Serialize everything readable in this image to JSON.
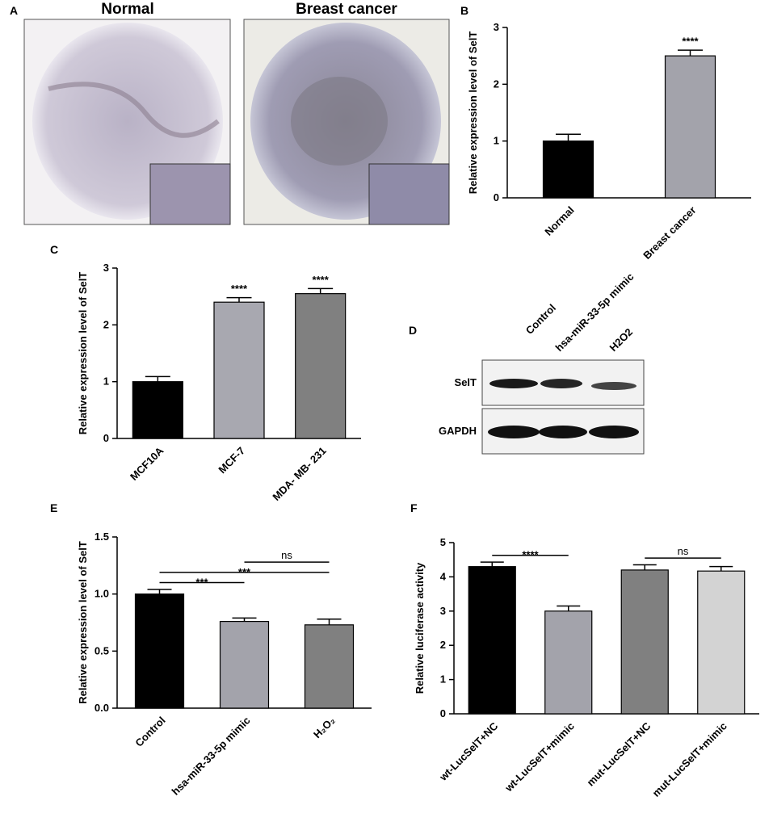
{
  "panel_a": {
    "letter": "A",
    "images": [
      "Normal",
      "Breast cancer"
    ]
  },
  "panel_d": {
    "letter": "D",
    "columns": [
      "Control",
      "hsa-miR-33-5p mimic",
      "H2O2"
    ],
    "rows": [
      "SelT",
      "GAPDH"
    ]
  },
  "chart_data": [
    {
      "type": "bar",
      "label": "B",
      "ylabel": "Relative expression level of SelT",
      "categories": [
        "Normal",
        "Breast cancer"
      ],
      "values": [
        1.0,
        2.5
      ],
      "errors": [
        0.12,
        0.1
      ],
      "colors": [
        "#000000",
        "#a3a3ab"
      ],
      "ylim": [
        0,
        3
      ],
      "yticks": [
        0,
        1,
        2,
        3
      ],
      "annotations": [
        {
          "text": "****",
          "from": 1,
          "to": 1
        }
      ]
    },
    {
      "type": "bar",
      "label": "C",
      "ylabel": "Relative expression level of SelT",
      "categories": [
        "MCF10A",
        "MCF-7",
        "MDA- MB- 231"
      ],
      "values": [
        1.0,
        2.4,
        2.55
      ],
      "errors": [
        0.09,
        0.08,
        0.09
      ],
      "colors": [
        "#000000",
        "#a8a8b0",
        "#808080"
      ],
      "ylim": [
        0,
        3
      ],
      "yticks": [
        0,
        1,
        2,
        3
      ],
      "annotations": [
        {
          "text": "****",
          "from": 1,
          "to": 1
        },
        {
          "text": "****",
          "from": 2,
          "to": 2
        }
      ]
    },
    {
      "type": "bar",
      "label": "E",
      "ylabel": "Relative expression level of SelT",
      "categories": [
        "Control",
        "hsa-miR-33-5p mimic",
        "H₂O₂"
      ],
      "values": [
        1.0,
        0.76,
        0.73
      ],
      "errors": [
        0.04,
        0.03,
        0.05
      ],
      "colors": [
        "#000000",
        "#a3a3ab",
        "#808080"
      ],
      "ylim": [
        0,
        1.5
      ],
      "yticks": [
        {
          "value": 0,
          "label": "0.0"
        },
        0.5,
        {
          "value": 1,
          "label": "1.0"
        },
        1.5
      ],
      "annotations": [
        {
          "text": "***",
          "from": 0,
          "to": 1
        },
        {
          "text": "***",
          "from": 0,
          "to": 2
        },
        {
          "text": "ns",
          "from": 1,
          "to": 2
        }
      ]
    },
    {
      "type": "bar",
      "label": "F",
      "ylabel": "Relative luciferase activity",
      "categories": [
        "wt-LucSelT+NC",
        "wt-LucSelT+mimic",
        "mut-LucSelT+NC",
        "mut-LucSelT+mimic"
      ],
      "values": [
        4.3,
        3.0,
        4.2,
        4.17
      ],
      "errors": [
        0.13,
        0.15,
        0.15,
        0.13
      ],
      "colors": [
        "#000000",
        "#a3a3ab",
        "#808080",
        "#d3d3d3"
      ],
      "ylim": [
        0,
        5
      ],
      "yticks": [
        0,
        1,
        2,
        3,
        4,
        5
      ],
      "annotations": [
        {
          "text": "****",
          "from": 0,
          "to": 1
        },
        {
          "text": "ns",
          "from": 2,
          "to": 3
        }
      ]
    }
  ]
}
